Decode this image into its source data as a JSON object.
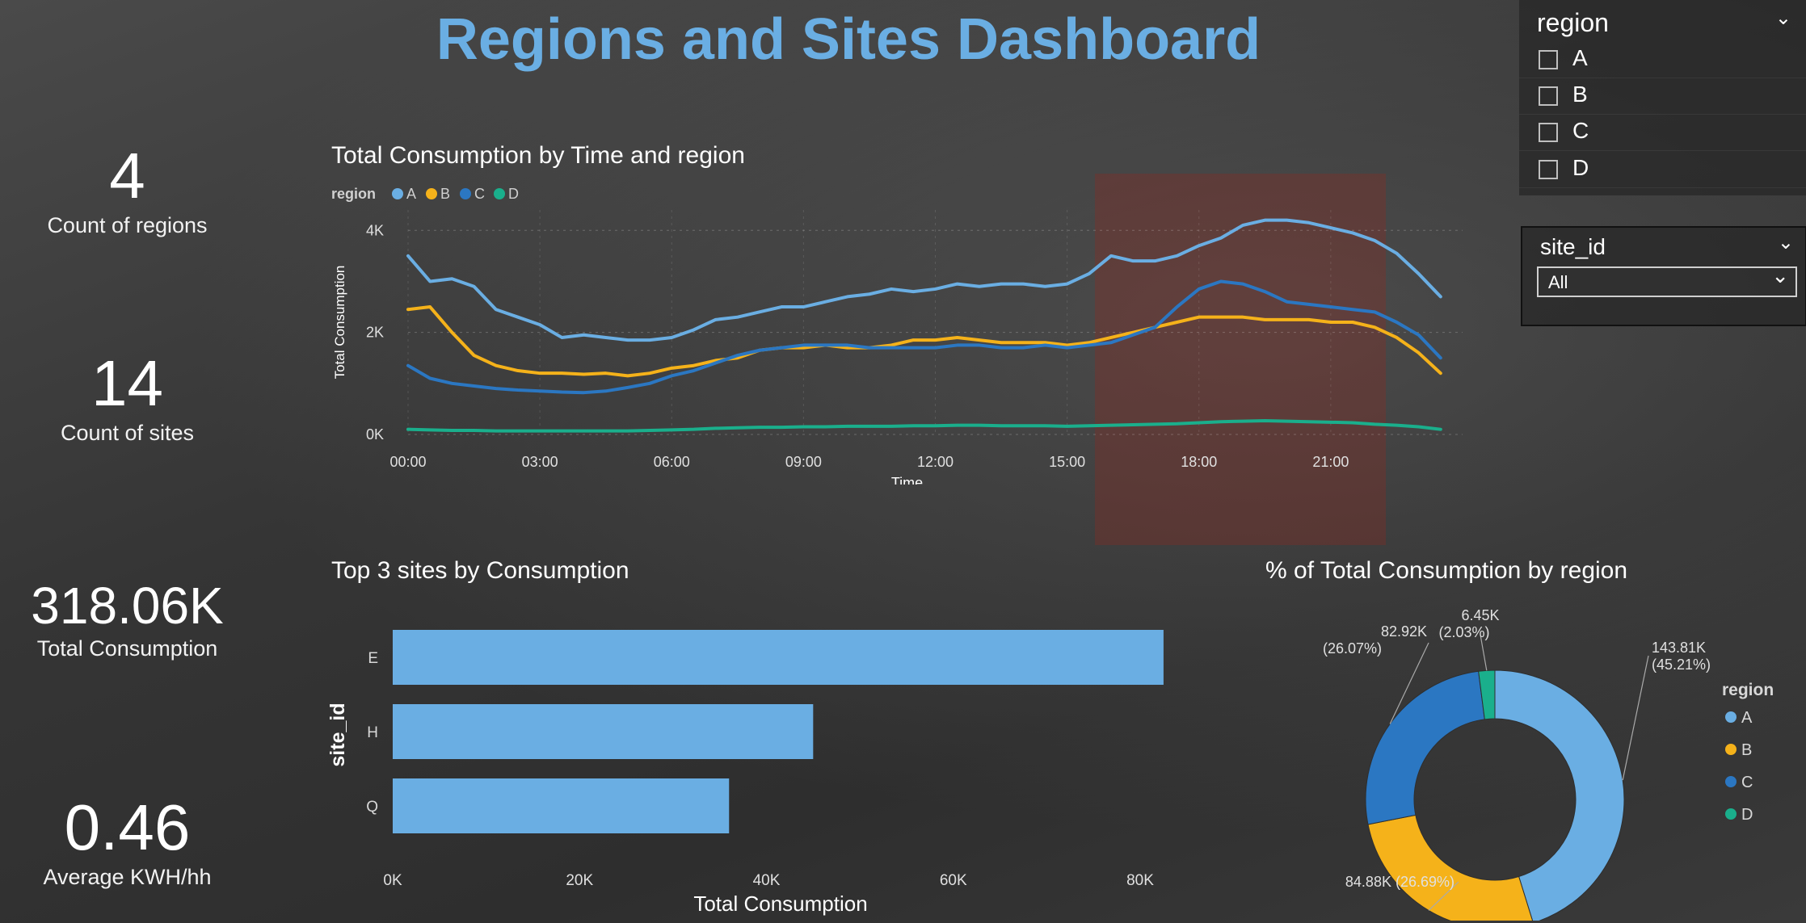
{
  "title": "Regions and Sites Dashboard",
  "kpis": [
    {
      "value": "4",
      "label": "Count of regions"
    },
    {
      "value": "14",
      "label": "Count of sites"
    },
    {
      "value": "318.06K",
      "label": "Total Consumption"
    },
    {
      "value": "0.46",
      "label": "Average KWH/hh"
    }
  ],
  "region_slicer": {
    "title": "region",
    "options": [
      "A",
      "B",
      "C",
      "D"
    ]
  },
  "site_slicer": {
    "title": "site_id",
    "selected": "All"
  },
  "colors": {
    "A": "#6aaee3",
    "B": "#f5b21a",
    "C": "#2b77c2",
    "D": "#1aaf8c",
    "title": "#6aaee3"
  },
  "chart_data": [
    {
      "type": "line",
      "title": "Total Consumption by Time and region",
      "xlabel": "Time",
      "ylabel": "Total Consumption",
      "legend_title": "region",
      "legend_position": "top-left",
      "grid": true,
      "x": [
        0,
        0.5,
        1,
        1.5,
        2,
        2.5,
        3,
        3.5,
        4,
        4.5,
        5,
        5.5,
        6,
        6.5,
        7,
        7.5,
        8,
        8.5,
        9,
        9.5,
        10,
        10.5,
        11,
        11.5,
        12,
        12.5,
        13,
        13.5,
        14,
        14.5,
        15,
        15.5,
        16,
        16.5,
        17,
        17.5,
        18,
        18.5,
        19,
        19.5,
        20,
        20.5,
        21,
        21.5,
        22,
        22.5,
        23,
        23.5
      ],
      "x_ticks": [
        "00:00",
        "03:00",
        "06:00",
        "09:00",
        "12:00",
        "15:00",
        "18:00",
        "21:00"
      ],
      "y_ticks": [
        "0K",
        "2K",
        "4K"
      ],
      "ylim": [
        0,
        4400
      ],
      "series": [
        {
          "name": "A",
          "values": [
            3500,
            3000,
            3050,
            2900,
            2450,
            2300,
            2150,
            1900,
            1950,
            1900,
            1850,
            1850,
            1900,
            2050,
            2250,
            2300,
            2400,
            2500,
            2500,
            2600,
            2700,
            2750,
            2850,
            2800,
            2850,
            2950,
            2900,
            2950,
            2950,
            2900,
            2950,
            3150,
            3500,
            3400,
            3400,
            3500,
            3700,
            3850,
            4100,
            4200,
            4200,
            4150,
            4050,
            3950,
            3800,
            3550,
            3150,
            2700
          ]
        },
        {
          "name": "B",
          "values": [
            2450,
            2500,
            2000,
            1550,
            1350,
            1250,
            1200,
            1200,
            1180,
            1200,
            1150,
            1200,
            1300,
            1350,
            1450,
            1500,
            1650,
            1700,
            1700,
            1750,
            1700,
            1700,
            1750,
            1850,
            1850,
            1900,
            1850,
            1800,
            1800,
            1800,
            1750,
            1800,
            1900,
            2000,
            2100,
            2200,
            2300,
            2300,
            2300,
            2250,
            2250,
            2250,
            2200,
            2200,
            2100,
            1900,
            1600,
            1200
          ]
        },
        {
          "name": "C",
          "values": [
            1350,
            1100,
            1000,
            950,
            900,
            870,
            850,
            830,
            820,
            850,
            920,
            1000,
            1150,
            1250,
            1400,
            1550,
            1650,
            1700,
            1750,
            1750,
            1750,
            1700,
            1700,
            1700,
            1700,
            1750,
            1750,
            1700,
            1700,
            1750,
            1700,
            1750,
            1800,
            1950,
            2100,
            2500,
            2850,
            3000,
            2950,
            2800,
            2600,
            2550,
            2500,
            2450,
            2400,
            2200,
            1950,
            1500
          ]
        },
        {
          "name": "D",
          "values": [
            100,
            90,
            80,
            80,
            70,
            70,
            70,
            70,
            70,
            70,
            70,
            80,
            90,
            100,
            120,
            130,
            140,
            140,
            150,
            150,
            160,
            160,
            160,
            170,
            170,
            180,
            180,
            170,
            170,
            170,
            160,
            170,
            180,
            190,
            200,
            210,
            230,
            250,
            260,
            270,
            260,
            250,
            240,
            230,
            200,
            180,
            150,
            100
          ]
        }
      ]
    },
    {
      "type": "bar",
      "orientation": "horizontal",
      "title": "Top 3 sites by Consumption",
      "xlabel": "Total Consumption",
      "ylabel": "site_id",
      "categories": [
        "E",
        "H",
        "Q"
      ],
      "values": [
        82500,
        45000,
        36000
      ],
      "x_ticks": [
        "0K",
        "20K",
        "40K",
        "60K",
        "80K"
      ],
      "xlim": [
        0,
        80000
      ]
    },
    {
      "type": "pie",
      "donut": true,
      "title": "% of Total Consumption by region",
      "legend_title": "region",
      "legend_position": "right",
      "categories": [
        "A",
        "B",
        "C",
        "D"
      ],
      "values": [
        143.81,
        84.88,
        82.92,
        6.45
      ],
      "labels": [
        "143.81K (45.21%)",
        "84.88K (26.69%)",
        "82.92K (26.07%)",
        "6.45K (2.03%)"
      ]
    }
  ]
}
